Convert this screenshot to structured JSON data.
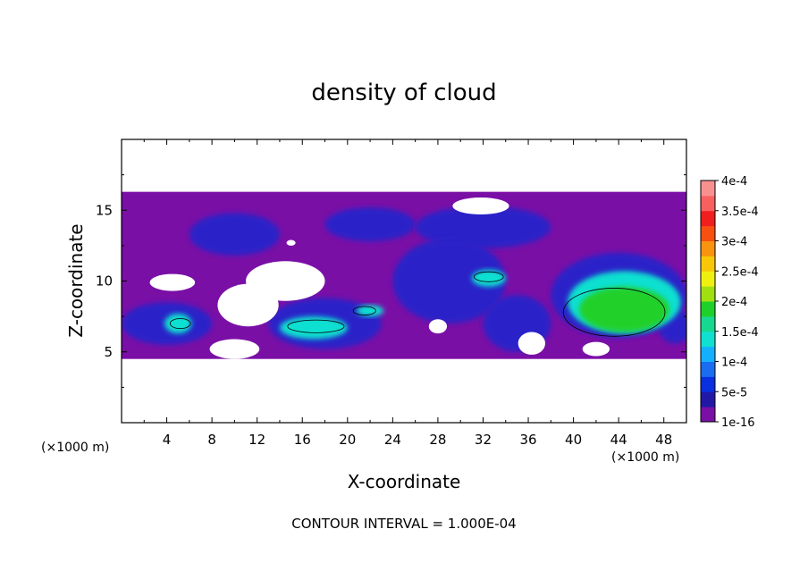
{
  "chart_data": {
    "type": "heatmap",
    "title": "density of cloud",
    "xlabel": "X-coordinate",
    "ylabel": "Z-coordinate",
    "x_unit": "(×1000 m)",
    "z_unit": "(×1000 m)",
    "xlim": [
      0,
      50
    ],
    "ylim": [
      0,
      20
    ],
    "x_ticks": [
      4,
      8,
      12,
      16,
      20,
      24,
      28,
      32,
      36,
      40,
      44,
      48
    ],
    "y_ticks": [
      5,
      10,
      15
    ],
    "note": "CONTOUR INTERVAL = 1.000E-04",
    "legend_position": "right",
    "colorbar": {
      "labels": [
        "1e-16",
        "5e-5",
        "1e-4",
        "1.5e-4",
        "2e-4",
        "2.5e-4",
        "3e-4",
        "3.5e-4",
        "4e-4"
      ],
      "colors": [
        "#7a0fa6",
        "#2218a6",
        "#0a2fe0",
        "#1a6cf0",
        "#14b0ff",
        "#10e0d0",
        "#16d890",
        "#20d02a",
        "#a0e010",
        "#f0f010",
        "#f8c808",
        "#f89410",
        "#f85010",
        "#f01e1e",
        "#f86060",
        "#f89090"
      ]
    },
    "cloud_layer_z": [
      4.5,
      16.3
    ],
    "regions": [
      {
        "level": "1e-16",
        "shape": "layer",
        "x": [
          0,
          50
        ],
        "z": [
          4.5,
          16.3
        ]
      },
      {
        "level": "5e-5",
        "shape": "ellipse",
        "x": 10,
        "z": 13.3,
        "rx": 4,
        "rz": 1.5
      },
      {
        "level": "5e-5",
        "shape": "ellipse",
        "x": 22,
        "z": 14,
        "rx": 4,
        "rz": 1.2
      },
      {
        "level": "5e-5",
        "shape": "ellipse",
        "x": 32,
        "z": 13.8,
        "rx": 6,
        "rz": 1.5
      },
      {
        "level": "5e-5",
        "shape": "ellipse",
        "x": 29,
        "z": 10,
        "rx": 5,
        "rz": 3
      },
      {
        "level": "5e-5",
        "shape": "ellipse",
        "x": 44,
        "z": 9,
        "rx": 6,
        "rz": 3
      },
      {
        "level": "5e-5",
        "shape": "ellipse",
        "x": 18,
        "z": 7,
        "rx": 5,
        "rz": 1.8
      },
      {
        "level": "5e-5",
        "shape": "ellipse",
        "x": 4,
        "z": 7,
        "rx": 4,
        "rz": 1.5
      },
      {
        "level": "5e-5",
        "shape": "ellipse",
        "x": 35,
        "z": 7,
        "rx": 3,
        "rz": 2
      },
      {
        "level": "5e-5",
        "shape": "ellipse",
        "x": 49,
        "z": 6.8,
        "rx": 1.5,
        "rz": 1.2
      },
      {
        "level": "1e-4",
        "shape": "ellipse",
        "x": 32.5,
        "z": 10.2,
        "rx": 1.5,
        "rz": 0.6
      },
      {
        "level": "1e-4",
        "shape": "ellipse",
        "x": 44.5,
        "z": 8.5,
        "rx": 5,
        "rz": 2.2
      },
      {
        "level": "1e-4",
        "shape": "ellipse",
        "x": 17,
        "z": 6.7,
        "rx": 3,
        "rz": 0.8
      },
      {
        "level": "1e-4",
        "shape": "ellipse",
        "x": 5,
        "z": 7,
        "rx": 1.2,
        "rz": 0.7
      },
      {
        "level": "1e-4",
        "shape": "ellipse",
        "x": 22,
        "z": 7.9,
        "rx": 1.2,
        "rz": 0.4
      },
      {
        "level": "1.5e-4",
        "shape": "ellipse",
        "x": 44.5,
        "z": 8,
        "rx": 4,
        "rz": 1.6
      }
    ],
    "gaps": [
      {
        "x": 14.5,
        "z": 10,
        "rx": 3.5,
        "rz": 1.4
      },
      {
        "x": 11.2,
        "z": 8.3,
        "rx": 2.7,
        "rz": 1.5
      },
      {
        "x": 4.5,
        "z": 9.9,
        "rx": 2,
        "rz": 0.6
      },
      {
        "x": 10,
        "z": 5.2,
        "rx": 2.2,
        "rz": 0.7
      },
      {
        "x": 36.3,
        "z": 5.6,
        "rx": 1.2,
        "rz": 0.8
      },
      {
        "x": 28,
        "z": 6.8,
        "rx": 0.8,
        "rz": 0.5
      },
      {
        "x": 31.8,
        "z": 15.3,
        "rx": 2.5,
        "rz": 0.6
      },
      {
        "x": 15,
        "z": 12.7,
        "rx": 0.4,
        "rz": 0.2
      },
      {
        "x": 42,
        "z": 5.2,
        "rx": 1.2,
        "rz": 0.5
      }
    ],
    "contours_1e-4": [
      {
        "x": 32.5,
        "z": 10.3,
        "rx": 1.3,
        "rz": 0.35
      },
      {
        "x": 43.6,
        "z": 7.8,
        "rx": 4.5,
        "rz": 1.7
      },
      {
        "x": 17.2,
        "z": 6.8,
        "rx": 2.5,
        "rz": 0.45
      },
      {
        "x": 5.2,
        "z": 7,
        "rx": 0.9,
        "rz": 0.35
      },
      {
        "x": 21.5,
        "z": 7.9,
        "rx": 1,
        "rz": 0.3
      }
    ]
  }
}
